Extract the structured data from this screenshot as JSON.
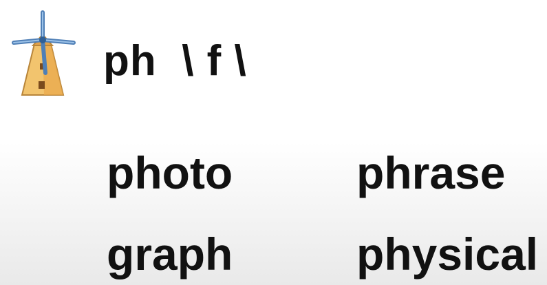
{
  "heading": "ph  \\ f \\",
  "words": [
    "photo",
    "phrase",
    "graph",
    "physical"
  ],
  "icon": "windmill-icon"
}
